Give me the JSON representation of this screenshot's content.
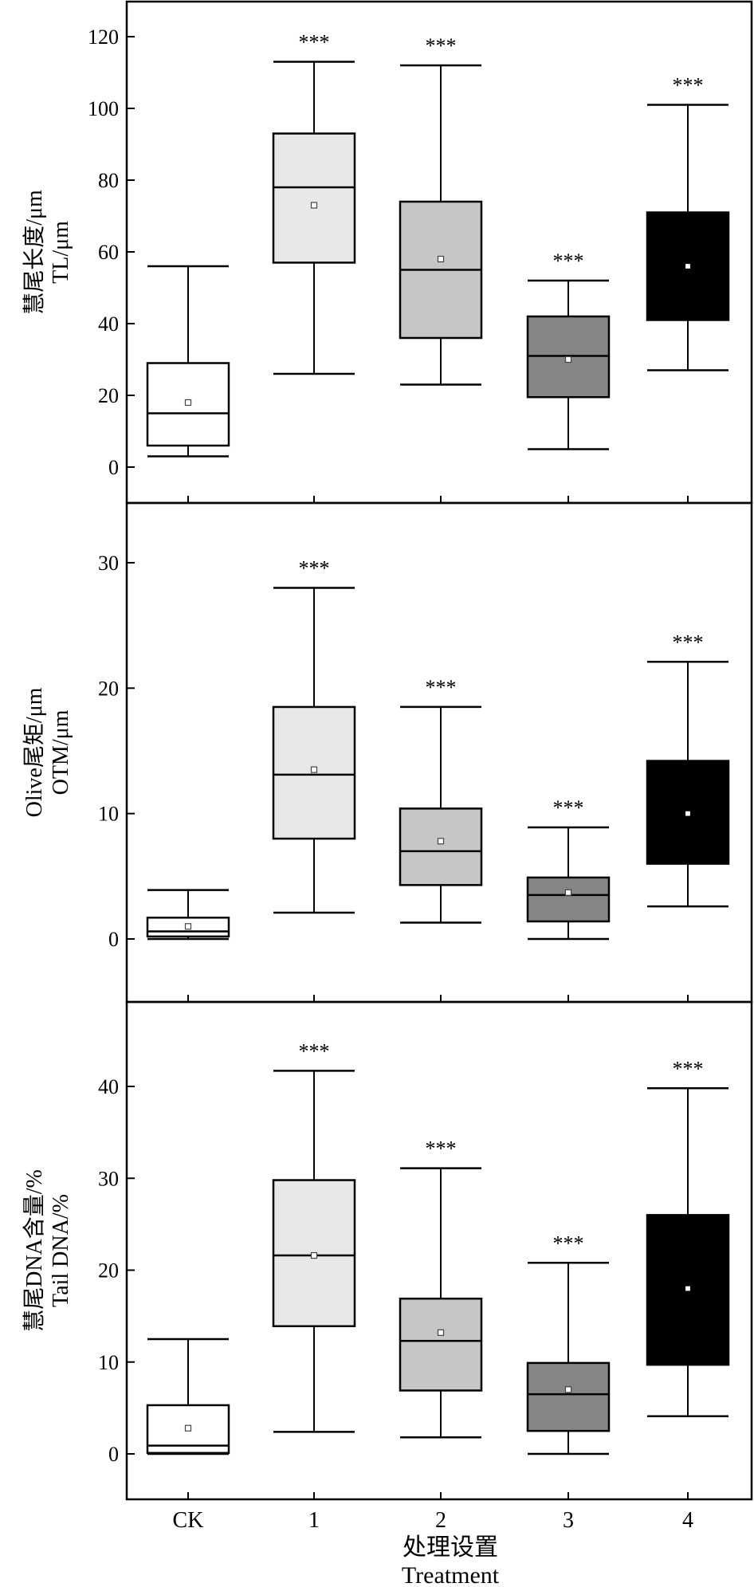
{
  "chart_data": [
    {
      "type": "box",
      "ylabel_cn": "慧尾长度/μm",
      "ylabel_en": "TL/μm",
      "ylim": [
        -10,
        130
      ],
      "yticks": [
        0,
        20,
        40,
        60,
        80,
        100,
        120
      ],
      "categories": [
        "CK",
        "1",
        "2",
        "3",
        "4"
      ],
      "boxes": [
        {
          "category": "CK",
          "min": 3,
          "q1": 6,
          "median": 15,
          "q3": 29,
          "max": 56,
          "mean": 18,
          "fill": "#ffffff",
          "sig": ""
        },
        {
          "category": "1",
          "min": 26,
          "q1": 57,
          "median": 78,
          "q3": 93,
          "max": 113,
          "mean": 73,
          "fill": "#e8e8e8",
          "sig": "***"
        },
        {
          "category": "2",
          "min": 23,
          "q1": 36,
          "median": 55,
          "q3": 74,
          "max": 112,
          "mean": 58,
          "fill": "#c6c6c6",
          "sig": "***"
        },
        {
          "category": "3",
          "min": 5,
          "q1": 19.5,
          "median": 31,
          "q3": 42,
          "max": 52,
          "mean": 30,
          "fill": "#858585",
          "sig": "***"
        },
        {
          "category": "4",
          "min": 27,
          "q1": 41,
          "median": 56,
          "q3": 71,
          "max": 101,
          "mean": 56,
          "fill": "#000000",
          "sig": "***"
        }
      ]
    },
    {
      "type": "box",
      "ylabel_cn": "Olive尾矩/μm",
      "ylabel_en": "OTM/μm",
      "ylim": [
        -5,
        35
      ],
      "yticks": [
        0,
        10,
        20,
        30
      ],
      "categories": [
        "CK",
        "1",
        "2",
        "3",
        "4"
      ],
      "boxes": [
        {
          "category": "CK",
          "min": 0,
          "q1": 0.2,
          "median": 0.6,
          "q3": 1.7,
          "max": 3.9,
          "mean": 1.0,
          "fill": "#ffffff",
          "sig": ""
        },
        {
          "category": "1",
          "min": 2.1,
          "q1": 8.0,
          "median": 13.1,
          "q3": 18.5,
          "max": 28.0,
          "mean": 13.5,
          "fill": "#e8e8e8",
          "sig": "***"
        },
        {
          "category": "2",
          "min": 1.3,
          "q1": 4.3,
          "median": 7.0,
          "q3": 10.4,
          "max": 18.5,
          "mean": 7.8,
          "fill": "#c6c6c6",
          "sig": "***"
        },
        {
          "category": "3",
          "min": 0,
          "q1": 1.4,
          "median": 3.5,
          "q3": 4.9,
          "max": 8.9,
          "mean": 3.7,
          "fill": "#858585",
          "sig": "***"
        },
        {
          "category": "4",
          "min": 2.6,
          "q1": 6.0,
          "median": 10.0,
          "q3": 14.2,
          "max": 22.1,
          "mean": 10.0,
          "fill": "#000000",
          "sig": "***"
        }
      ]
    },
    {
      "type": "box",
      "ylabel_cn": "慧尾DNA含量/%",
      "ylabel_en": "Tail DNA/%",
      "ylim": [
        -5,
        47
      ],
      "yticks": [
        0,
        10,
        20,
        30,
        40
      ],
      "categories": [
        "CK",
        "1",
        "2",
        "3",
        "4"
      ],
      "xlabel_cn": "处理设置",
      "xlabel_en": "Treatment",
      "boxes": [
        {
          "category": "CK",
          "min": 0,
          "q1": 0.1,
          "median": 0.9,
          "q3": 5.3,
          "max": 12.5,
          "mean": 2.8,
          "fill": "#ffffff",
          "sig": ""
        },
        {
          "category": "1",
          "min": 2.4,
          "q1": 13.9,
          "median": 21.6,
          "q3": 29.8,
          "max": 41.7,
          "mean": 21.6,
          "fill": "#e8e8e8",
          "sig": "***"
        },
        {
          "category": "2",
          "min": 1.8,
          "q1": 6.9,
          "median": 12.3,
          "q3": 16.9,
          "max": 31.1,
          "mean": 13.2,
          "fill": "#c6c6c6",
          "sig": "***"
        },
        {
          "category": "3",
          "min": 0,
          "q1": 2.5,
          "median": 6.5,
          "q3": 9.9,
          "max": 20.8,
          "mean": 7.0,
          "fill": "#858585",
          "sig": "***"
        },
        {
          "category": "4",
          "min": 4.1,
          "q1": 9.7,
          "median": 18.0,
          "q3": 26.0,
          "max": 39.8,
          "mean": 18.0,
          "fill": "#000000",
          "sig": "***"
        }
      ]
    }
  ]
}
